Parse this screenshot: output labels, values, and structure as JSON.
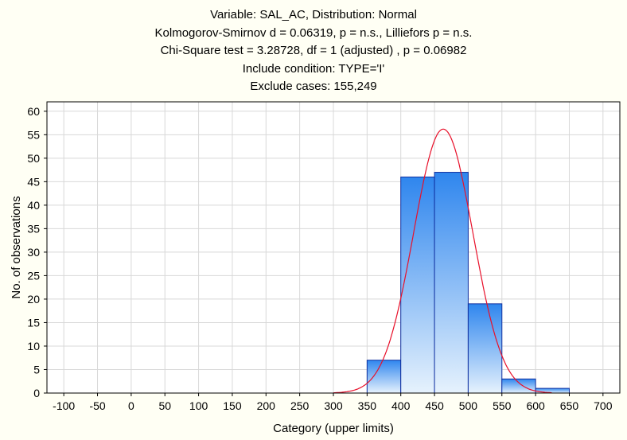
{
  "chart_data": {
    "type": "bar",
    "title_lines": [
      "Variable: SAL_AC, Distribution: Normal",
      "Kolmogorov-Smirnov d = 0.06319, p = n.s., Lilliefors p = n.s.",
      "Chi-Square test = 3.28728, df = 1 (adjusted) , p = 0.06982",
      "Include condition: TYPE='I'",
      "Exclude cases: 155,249"
    ],
    "xlabel": "Category (upper limits)",
    "ylabel": "No. of observations",
    "xlim": [
      -125,
      725
    ],
    "ylim": [
      0,
      62
    ],
    "x_ticks": [
      -100,
      -50,
      0,
      50,
      100,
      150,
      200,
      250,
      300,
      350,
      400,
      450,
      500,
      550,
      600,
      650,
      700
    ],
    "y_ticks": [
      0,
      5,
      10,
      15,
      20,
      25,
      30,
      35,
      40,
      45,
      50,
      55,
      60
    ],
    "grid": true,
    "bins": [
      {
        "lower": 350,
        "upper": 400,
        "count": 7
      },
      {
        "lower": 400,
        "upper": 450,
        "count": 46
      },
      {
        "lower": 450,
        "upper": 500,
        "count": 47
      },
      {
        "lower": 500,
        "upper": 550,
        "count": 19
      },
      {
        "lower": 550,
        "upper": 600,
        "count": 3
      },
      {
        "lower": 600,
        "upper": 650,
        "count": 1
      }
    ],
    "fitted_curve": {
      "distribution": "normal",
      "mean": 463,
      "sd": 44,
      "peak": 56.2
    },
    "colors": {
      "bar_top": "#2f86ee",
      "bar_bottom": "#e6f2fd",
      "bar_edge": "#1030a0",
      "curve": "#e8102a",
      "grid": "#d8d8d8",
      "plot_bg": "#ffffff",
      "page_bg": "#fffff4"
    }
  }
}
